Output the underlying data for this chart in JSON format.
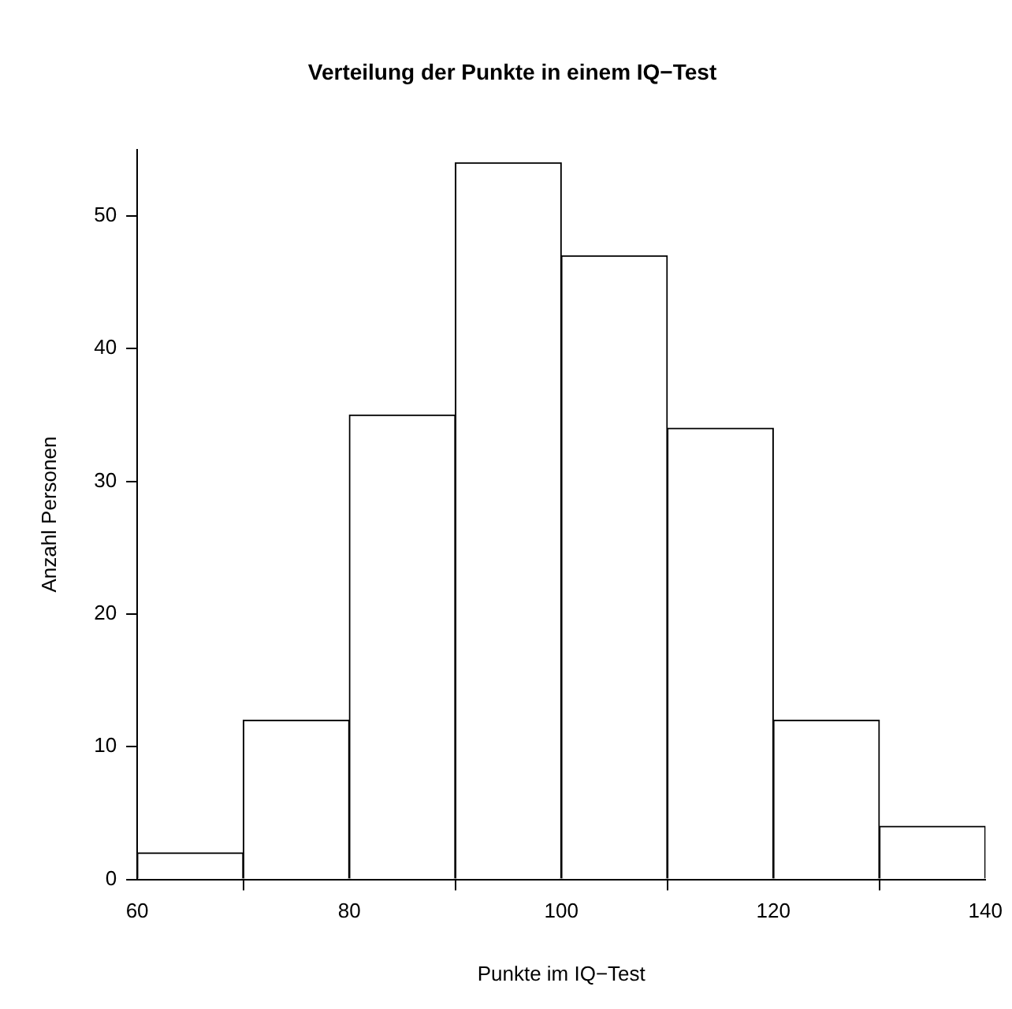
{
  "chart_data": {
    "type": "histogram",
    "title": "Verteilung der Punkte in einem IQ−Test",
    "xlabel": "Punkte im IQ−Test",
    "ylabel": "Anzahl Personen",
    "bins": [
      60,
      70,
      80,
      90,
      100,
      110,
      120,
      130,
      140
    ],
    "values": [
      2,
      12,
      35,
      54,
      47,
      34,
      12,
      4
    ],
    "color": "#ffffff",
    "xlim": [
      60,
      140
    ],
    "xticks": [
      60,
      80,
      100,
      120,
      140
    ],
    "ylim": [
      0,
      55
    ],
    "yticks": [
      0,
      10,
      20,
      30,
      40,
      50
    ],
    "grid": false,
    "legend": false
  }
}
